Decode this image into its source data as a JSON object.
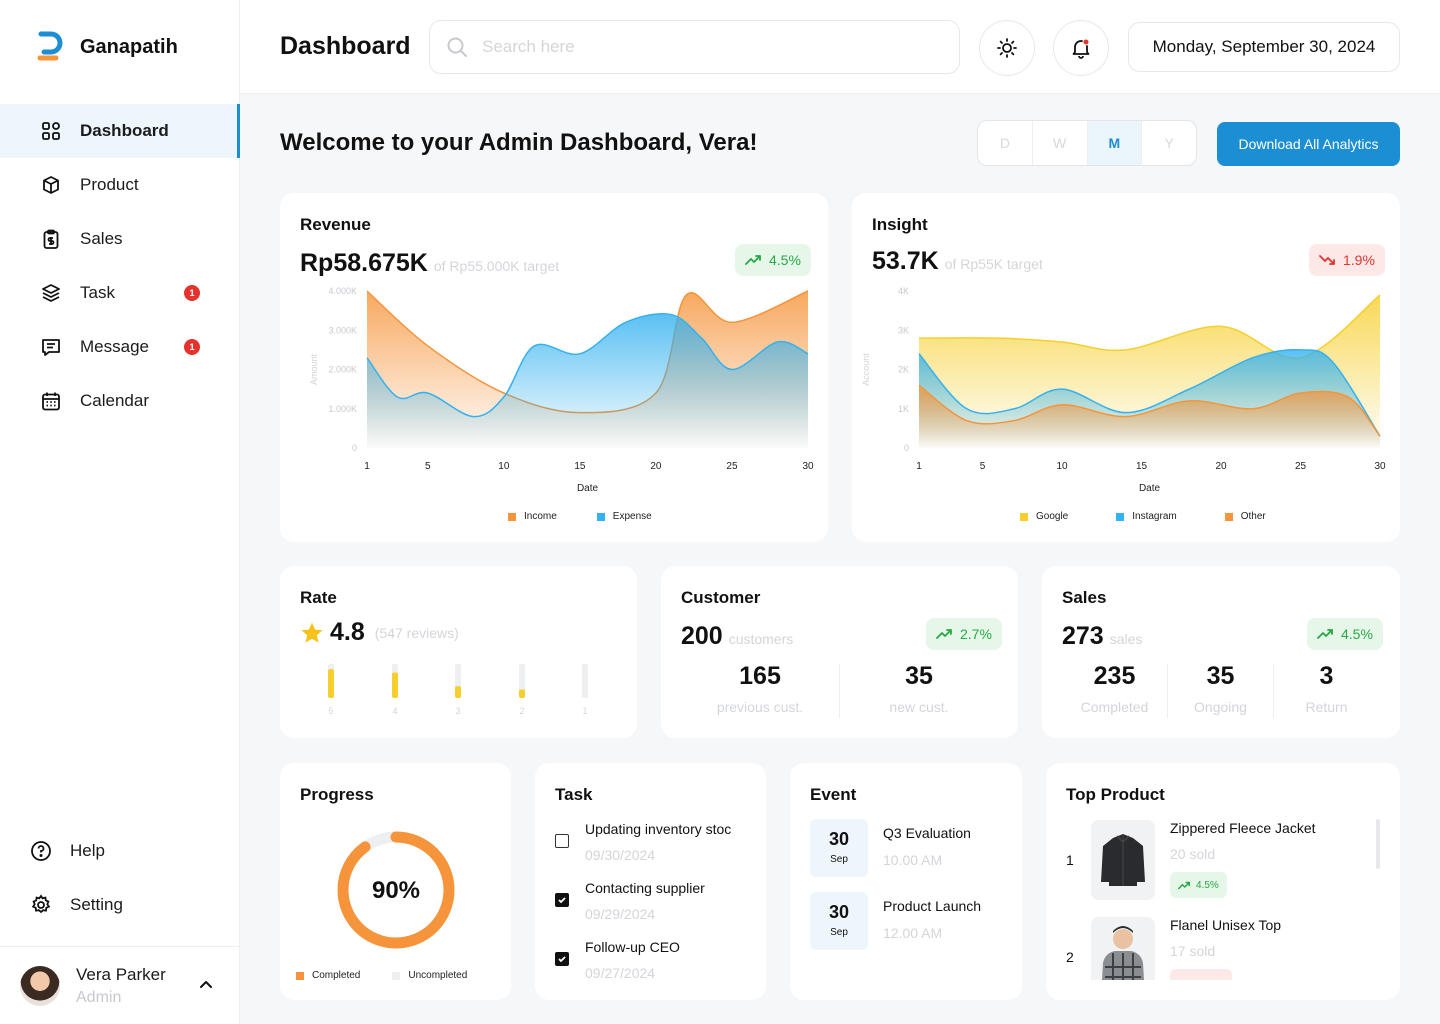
{
  "app": {
    "name": "Ganapatih"
  },
  "sidebar": {
    "items": [
      {
        "label": "Dashboard",
        "icon": "grid-icon",
        "active": true
      },
      {
        "label": "Product",
        "icon": "box-icon"
      },
      {
        "label": "Sales",
        "icon": "clipboard-dollar-icon"
      },
      {
        "label": "Task",
        "icon": "layers-icon",
        "badge": "1"
      },
      {
        "label": "Message",
        "icon": "message-icon",
        "badge": "1"
      },
      {
        "label": "Calendar",
        "icon": "calendar-icon"
      }
    ],
    "bottom": [
      {
        "label": "Help",
        "icon": "help-circle-icon"
      },
      {
        "label": "Setting",
        "icon": "gear-icon"
      }
    ],
    "user": {
      "name": "Vera Parker",
      "role": "Admin"
    }
  },
  "header": {
    "title": "Dashboard",
    "search_placeholder": "Search here",
    "date": "Monday, September 30, 2024"
  },
  "welcome": "Welcome to your Admin Dashboard, Vera!",
  "period": {
    "options": [
      "D",
      "W",
      "M",
      "Y"
    ],
    "selected": "M"
  },
  "download_label": "Download All Analytics",
  "revenue": {
    "title": "Revenue",
    "value": "Rp58.675K",
    "target": "of Rp55.000K target",
    "change": "4.5%",
    "chart_data": {
      "type": "area",
      "title": "Revenue",
      "xlabel": "Date",
      "ylabel": "Amount",
      "x_ticks": [
        "1",
        "5",
        "10",
        "15",
        "20",
        "25",
        "30"
      ],
      "y_ticks": [
        "0",
        "1.000K",
        "2.000K",
        "3.000K",
        "4.000K"
      ],
      "ylim": [
        0,
        4000
      ],
      "xlim": [
        1,
        30
      ],
      "series": [
        {
          "name": "Income",
          "color": "#f5943a",
          "x": [
            1,
            5,
            10,
            15,
            20,
            22,
            25,
            30
          ],
          "values": [
            4000,
            2600,
            1400,
            900,
            1400,
            3900,
            3200,
            4000
          ]
        },
        {
          "name": "Expense",
          "color": "#33b1f0",
          "x": [
            1,
            3,
            5,
            8,
            10,
            12,
            15,
            18,
            21,
            23,
            25,
            28,
            30
          ],
          "values": [
            2300,
            1300,
            1400,
            800,
            1300,
            2600,
            2400,
            3200,
            3400,
            2800,
            2000,
            2700,
            2400
          ]
        }
      ]
    }
  },
  "insight": {
    "title": "Insight",
    "value": "53.7K",
    "target": "of Rp55K target",
    "change": "1.9%",
    "chart_data": {
      "type": "area",
      "title": "Insight",
      "xlabel": "Date",
      "ylabel": "Account",
      "x_ticks": [
        "1",
        "5",
        "10",
        "15",
        "20",
        "25",
        "30"
      ],
      "y_ticks": [
        "0",
        "1K",
        "2K",
        "3K",
        "4K"
      ],
      "ylim": [
        0,
        4000
      ],
      "xlim": [
        1,
        30
      ],
      "series": [
        {
          "name": "Google",
          "color": "#f7cf2d",
          "x": [
            1,
            6,
            10,
            14,
            20,
            25,
            30
          ],
          "values": [
            2800,
            2800,
            2700,
            2500,
            3100,
            2300,
            3900
          ]
        },
        {
          "name": "Instagram",
          "color": "#33b1f0",
          "x": [
            1,
            4,
            7,
            10,
            14,
            18,
            22,
            25,
            27,
            30
          ],
          "values": [
            2400,
            1000,
            1000,
            1500,
            900,
            1500,
            2300,
            2500,
            2200,
            300
          ]
        },
        {
          "name": "Other",
          "color": "#f5943a",
          "x": [
            1,
            4,
            7,
            10,
            14,
            18,
            22,
            25,
            28,
            30
          ],
          "values": [
            1600,
            700,
            700,
            1100,
            800,
            1200,
            1000,
            1400,
            1300,
            300
          ]
        }
      ]
    }
  },
  "rate": {
    "title": "Rate",
    "value": "4.8",
    "reviews": "(547 reviews)",
    "chart_data": {
      "type": "bar",
      "categories": [
        "5",
        "4",
        "3",
        "2",
        "1"
      ],
      "values": [
        0.85,
        0.75,
        0.35,
        0.25,
        0.0
      ],
      "ylim": [
        0,
        1
      ]
    }
  },
  "customer": {
    "title": "Customer",
    "value": "200",
    "unit": "customers",
    "change": "2.7%",
    "stats": [
      {
        "value": "165",
        "label": "previous cust."
      },
      {
        "value": "35",
        "label": "new cust."
      }
    ]
  },
  "sales": {
    "title": "Sales",
    "value": "273",
    "unit": "sales",
    "change": "4.5%",
    "stats": [
      {
        "value": "235",
        "label": "Completed"
      },
      {
        "value": "35",
        "label": "Ongoing"
      },
      {
        "value": "3",
        "label": "Return"
      }
    ]
  },
  "progress": {
    "title": "Progress",
    "percent_label": "90%",
    "percent": 90,
    "legend": [
      "Completed",
      "Uncompleted"
    ]
  },
  "task": {
    "title": "Task",
    "items": [
      {
        "text": "Updating inventory stoc",
        "date": "09/30/2024",
        "done": false
      },
      {
        "text": "Contacting supplier",
        "date": "09/29/2024",
        "done": true
      },
      {
        "text": "Follow-up CEO",
        "date": "09/27/2024",
        "done": true
      }
    ]
  },
  "event": {
    "title": "Event",
    "items": [
      {
        "day": "30",
        "month": "Sep",
        "title": "Q3 Evaluation",
        "time": "10.00 AM"
      },
      {
        "day": "30",
        "month": "Sep",
        "title": "Product Launch",
        "time": "12.00 AM"
      }
    ]
  },
  "top_product": {
    "title": "Top Product",
    "items": [
      {
        "rank": "1",
        "name": "Zippered Fleece Jacket",
        "sold": "20 sold",
        "change": "4.5%"
      },
      {
        "rank": "2",
        "name": "Flanel Unisex Top",
        "sold": "17 sold"
      }
    ]
  }
}
